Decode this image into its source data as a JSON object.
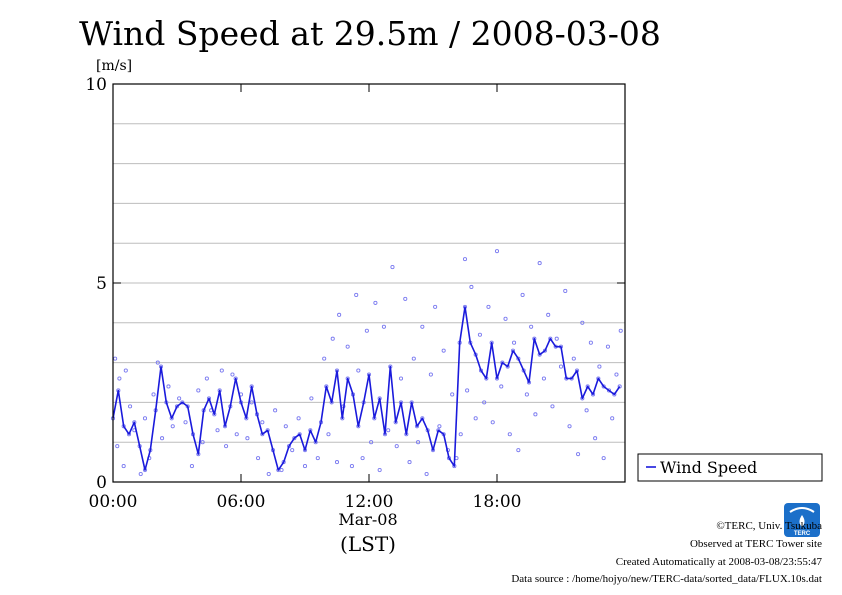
{
  "chart_data": {
    "type": "scatter",
    "title": "Wind Speed at 29.5m / 2008-03-08",
    "ylabel": "[m/s]",
    "xlabel": "(LST)",
    "date_label": "Mar-08",
    "xlim_hours": [
      0,
      24
    ],
    "ylim": [
      0,
      10
    ],
    "y_ticks": [
      0,
      5,
      10
    ],
    "x_ticks": [
      {
        "value": 0,
        "label": "00:00"
      },
      {
        "value": 6,
        "label": "06:00"
      },
      {
        "value": 12,
        "label": "12:00"
      },
      {
        "value": 18,
        "label": "18:00"
      }
    ],
    "grid": true,
    "legend": {
      "label": "Wind Speed",
      "placement": "right"
    },
    "colors": {
      "line": "#1a1adc",
      "points": "#7a7af0"
    },
    "series": [
      {
        "name": "Wind Speed",
        "x_hours": [
          0.0,
          0.25,
          0.5,
          0.75,
          1.0,
          1.25,
          1.5,
          1.75,
          2.0,
          2.25,
          2.5,
          2.75,
          3.0,
          3.25,
          3.5,
          3.75,
          4.0,
          4.25,
          4.5,
          4.75,
          5.0,
          5.25,
          5.5,
          5.75,
          6.0,
          6.25,
          6.5,
          6.75,
          7.0,
          7.25,
          7.5,
          7.75,
          8.0,
          8.25,
          8.5,
          8.75,
          9.0,
          9.25,
          9.5,
          9.75,
          10.0,
          10.25,
          10.5,
          10.75,
          11.0,
          11.25,
          11.5,
          11.75,
          12.0,
          12.25,
          12.5,
          12.75,
          13.0,
          13.25,
          13.5,
          13.75,
          14.0,
          14.25,
          14.5,
          14.75,
          15.0,
          15.25,
          15.5,
          15.75,
          16.0,
          16.25,
          16.5,
          16.75,
          17.0,
          17.25,
          17.5,
          17.75,
          18.0,
          18.25,
          18.5,
          18.75,
          19.0,
          19.25,
          19.5,
          19.75,
          20.0,
          20.25,
          20.5,
          20.75,
          21.0,
          21.25,
          21.5,
          21.75,
          22.0,
          22.25,
          22.5,
          22.75,
          23.0,
          23.25,
          23.5,
          23.75
        ],
        "values": [
          1.6,
          2.3,
          1.4,
          1.2,
          1.5,
          0.9,
          0.3,
          0.8,
          1.8,
          2.9,
          2.0,
          1.6,
          1.9,
          2.0,
          1.9,
          1.2,
          0.7,
          1.8,
          2.1,
          1.7,
          2.3,
          1.4,
          1.9,
          2.6,
          2.0,
          1.6,
          2.4,
          1.7,
          1.2,
          1.3,
          0.8,
          0.3,
          0.5,
          0.9,
          1.1,
          1.2,
          0.8,
          1.3,
          1.0,
          1.5,
          2.4,
          2.0,
          2.8,
          1.6,
          2.6,
          2.2,
          1.4,
          2.0,
          2.7,
          1.6,
          2.1,
          1.2,
          2.9,
          1.5,
          2.0,
          1.2,
          2.0,
          1.4,
          1.6,
          1.3,
          0.8,
          1.3,
          1.2,
          0.6,
          0.4,
          3.5,
          4.4,
          3.5,
          3.2,
          2.8,
          2.6,
          3.5,
          2.6,
          3.0,
          2.9,
          3.3,
          3.1,
          2.8,
          2.5,
          3.6,
          3.2,
          3.3,
          3.6,
          3.4,
          3.4,
          2.6,
          2.6,
          2.8,
          2.1,
          2.4,
          2.2,
          2.6,
          2.4,
          2.3,
          2.2,
          2.4
        ],
        "points_hours": [
          0.1,
          0.2,
          0.3,
          0.5,
          0.6,
          0.8,
          1.0,
          1.3,
          1.5,
          1.7,
          1.9,
          2.1,
          2.3,
          2.6,
          2.8,
          3.1,
          3.4,
          3.7,
          4.0,
          4.2,
          4.4,
          4.6,
          4.9,
          5.1,
          5.3,
          5.6,
          5.8,
          6.0,
          6.3,
          6.5,
          6.8,
          7.0,
          7.3,
          7.6,
          7.9,
          8.1,
          8.4,
          8.7,
          9.0,
          9.3,
          9.6,
          9.9,
          10.1,
          10.3,
          10.5,
          10.6,
          10.8,
          11.0,
          11.2,
          11.4,
          11.5,
          11.7,
          11.9,
          12.1,
          12.3,
          12.5,
          12.7,
          12.9,
          13.1,
          13.3,
          13.5,
          13.7,
          13.9,
          14.1,
          14.3,
          14.5,
          14.7,
          14.9,
          15.1,
          15.3,
          15.5,
          15.7,
          15.9,
          16.1,
          16.3,
          16.5,
          16.6,
          16.8,
          17.0,
          17.2,
          17.4,
          17.6,
          17.8,
          18.0,
          18.2,
          18.4,
          18.6,
          18.8,
          19.0,
          19.2,
          19.4,
          19.6,
          19.8,
          20.0,
          20.2,
          20.4,
          20.6,
          20.8,
          21.0,
          21.2,
          21.4,
          21.6,
          21.8,
          22.0,
          22.2,
          22.4,
          22.6,
          22.8,
          23.0,
          23.2,
          23.4,
          23.6,
          23.8
        ],
        "points_values": [
          3.1,
          0.9,
          2.6,
          0.4,
          2.8,
          1.9,
          1.3,
          0.2,
          1.6,
          0.6,
          2.2,
          3.0,
          1.1,
          2.4,
          1.4,
          2.1,
          1.5,
          0.4,
          2.3,
          1.0,
          2.6,
          1.8,
          1.3,
          2.8,
          0.9,
          2.7,
          1.2,
          2.2,
          1.1,
          2.0,
          0.6,
          1.5,
          0.2,
          1.8,
          0.3,
          1.4,
          0.8,
          1.6,
          0.4,
          2.1,
          0.6,
          3.1,
          1.2,
          3.6,
          0.5,
          4.2,
          1.9,
          3.4,
          0.4,
          4.7,
          2.8,
          0.6,
          3.8,
          1.0,
          4.5,
          0.3,
          3.9,
          1.3,
          5.4,
          0.9,
          2.6,
          4.6,
          0.5,
          3.1,
          1.0,
          3.9,
          0.2,
          2.7,
          4.4,
          1.4,
          3.3,
          0.8,
          2.2,
          0.6,
          1.2,
          5.6,
          2.3,
          4.9,
          1.6,
          3.7,
          2.0,
          4.4,
          1.5,
          5.8,
          2.4,
          4.1,
          1.2,
          3.5,
          0.8,
          4.7,
          2.2,
          3.9,
          1.7,
          5.5,
          2.6,
          4.2,
          1.9,
          3.6,
          2.9,
          4.8,
          1.4,
          3.1,
          0.7,
          4.0,
          1.8,
          3.5,
          1.1,
          2.9,
          0.6,
          3.4,
          1.6,
          2.7,
          3.8
        ]
      }
    ]
  },
  "footer": {
    "copyright": "©TERC, Univ. Tsukuba",
    "observed": "Observed at TERC Tower site",
    "created": "Created Automatically at 2008-03-08/23:55:47",
    "source": "Data source : /home/hojyo/new/TERC-data/sorted_data/FLUX.10s.dat",
    "logo_text": "TERC"
  }
}
